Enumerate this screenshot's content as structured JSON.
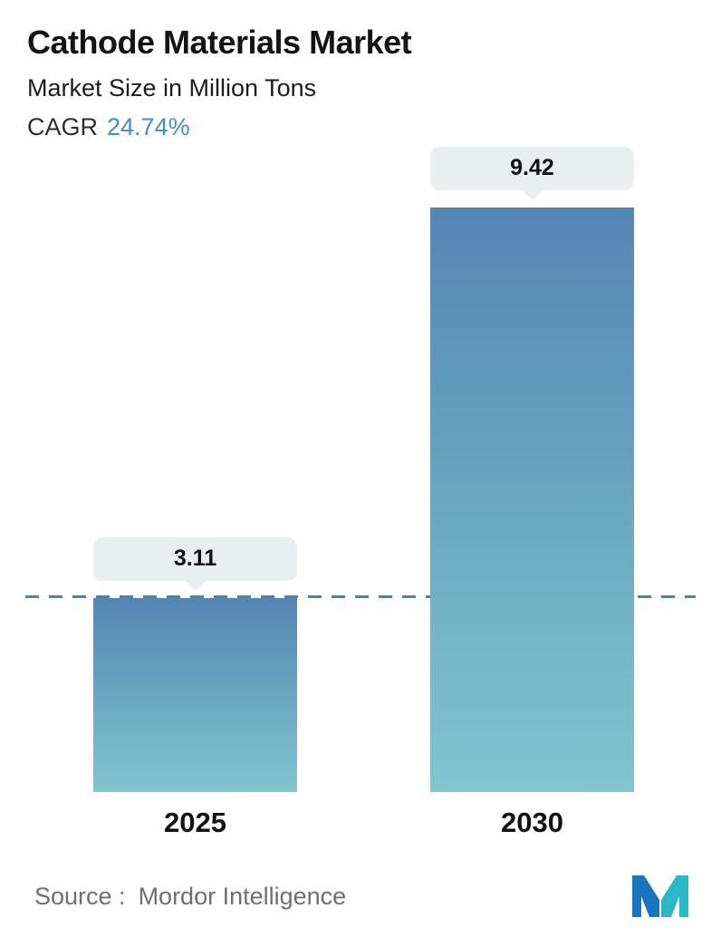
{
  "header": {
    "title": "Cathode Materials Market",
    "subtitle": "Market Size in Million Tons",
    "cagr_label": "CAGR",
    "cagr_value": "24.74%"
  },
  "chart_data": {
    "type": "bar",
    "title": "Cathode Materials Market",
    "subtitle": "Market Size in Million Tons",
    "categories": [
      "2025",
      "2030"
    ],
    "values": [
      3.11,
      9.42
    ],
    "data_labels": [
      "3.11",
      "9.42"
    ],
    "ylabel": "Market Size in Million Tons",
    "ylim": [
      0,
      9.42
    ],
    "grid": false,
    "legend": false,
    "dashed_line_value": 3.11,
    "dashed_line_color": "#4a85a8",
    "bar_gradient_top": "#5486b4",
    "bar_gradient_bottom": "#7fc6ce",
    "callout_bg": "#e9eff1"
  },
  "footer": {
    "source_label": "Source :",
    "source_value": "Mordor Intelligence"
  },
  "colors": {
    "cagr_accent": "#4090c0",
    "logo_blue": "#1b75bc",
    "logo_teal": "#29b8c5"
  }
}
